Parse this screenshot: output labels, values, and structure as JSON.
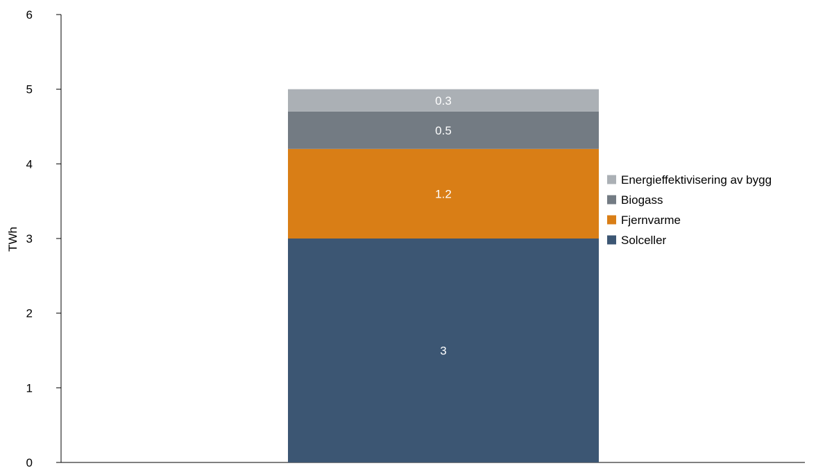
{
  "chart_data": {
    "type": "bar",
    "stacked": true,
    "categories": [
      ""
    ],
    "series": [
      {
        "name": "Solceller",
        "values": [
          3
        ],
        "color": "#3c5673",
        "data_labels": [
          "3"
        ]
      },
      {
        "name": "Fjernvarme",
        "values": [
          1.2
        ],
        "color": "#d97e16",
        "data_labels": [
          "1.2"
        ]
      },
      {
        "name": "Biogass",
        "values": [
          0.5
        ],
        "color": "#737b83",
        "data_labels": [
          "0.5"
        ]
      },
      {
        "name": "Energieffektivisering av bygg",
        "values": [
          0.3
        ],
        "color": "#abb0b5",
        "data_labels": [
          "0.3"
        ]
      }
    ],
    "title": "",
    "xlabel": "",
    "ylabel": "TWh",
    "ylim": [
      0,
      6
    ],
    "yticks": [
      0,
      1,
      2,
      3,
      4,
      5,
      6
    ],
    "ytick_labels": [
      "0",
      "1",
      "2",
      "3",
      "4",
      "5",
      "6"
    ],
    "grid": false,
    "legend": {
      "placement": "right",
      "order": [
        "Energieffektivisering av bygg",
        "Biogass",
        "Fjernvarme",
        "Solceller"
      ]
    }
  }
}
